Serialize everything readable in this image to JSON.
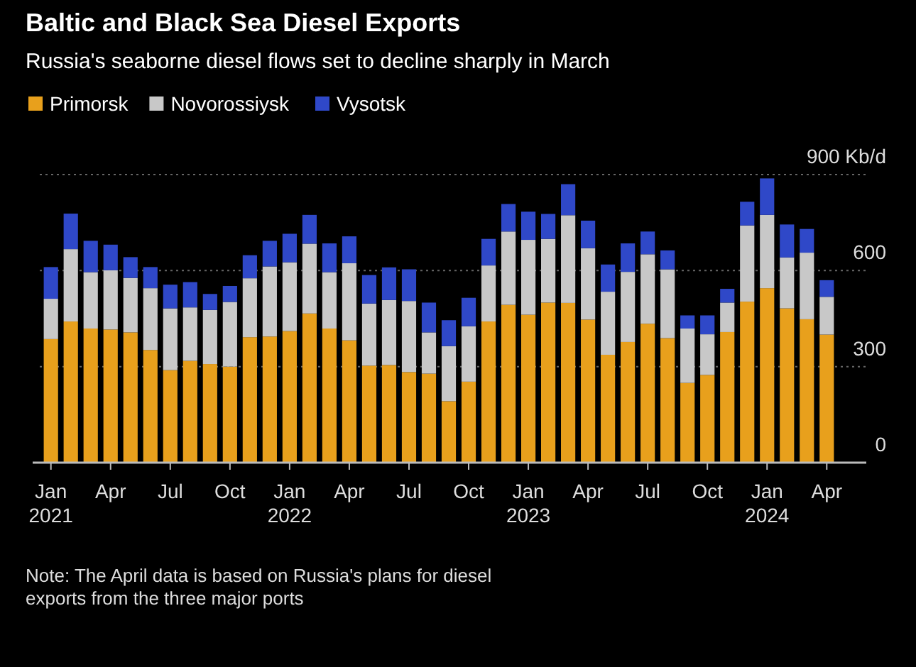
{
  "chart_data": {
    "type": "bar",
    "title": "Baltic and Black Sea Diesel Exports",
    "subtitle": "Russia's seaborne diesel flows set to decline sharply in March",
    "categories": [
      "Jan 2021",
      null,
      null,
      "Apr",
      null,
      null,
      "Jul",
      null,
      null,
      "Oct",
      null,
      null,
      "Jan 2022",
      null,
      null,
      "Apr",
      null,
      null,
      "Jul",
      null,
      null,
      "Oct",
      null,
      null,
      "Jan 2023",
      null,
      null,
      "Apr",
      null,
      null,
      "Jul",
      null,
      null,
      "Oct",
      null,
      null,
      "Jan 2024",
      null,
      null,
      "Apr"
    ],
    "stacked": true,
    "series": [
      {
        "name": "Primorsk",
        "color": "#e8a01c",
        "values": [
          386,
          441,
          419,
          416,
          407,
          352,
          289,
          318,
          308,
          300,
          392,
          394,
          411,
          466,
          419,
          382,
          303,
          305,
          283,
          278,
          192,
          253,
          441,
          493,
          462,
          500,
          499,
          447,
          337,
          377,
          434,
          389,
          249,
          274,
          408,
          503,
          545,
          482,
          448,
          400
        ]
      },
      {
        "name": "Novorossiysk",
        "color": "#c8c8c8",
        "values": [
          126,
          226,
          176,
          185,
          170,
          193,
          193,
          167,
          169,
          202,
          184,
          219,
          215,
          218,
          176,
          241,
          194,
          203,
          222,
          129,
          172,
          173,
          175,
          229,
          234,
          199,
          274,
          223,
          197,
          219,
          217,
          215,
          170,
          127,
          92,
          238,
          229,
          159,
          208,
          118
        ]
      },
      {
        "name": "Vysotsk",
        "color": "#2f48c8",
        "values": [
          99,
          111,
          98,
          80,
          65,
          66,
          74,
          79,
          50,
          50,
          72,
          80,
          89,
          90,
          90,
          84,
          89,
          102,
          99,
          93,
          81,
          89,
          83,
          86,
          88,
          78,
          97,
          86,
          85,
          89,
          71,
          59,
          41,
          59,
          43,
          74,
          114,
          103,
          74,
          52
        ]
      }
    ],
    "ylim": [
      0,
      900
    ],
    "yticks": [
      0,
      300,
      600,
      {
        "value": 900,
        "label": "900 Kb/d"
      }
    ],
    "grid": "y",
    "legend": "top left",
    "annotations": [
      "Note: The April data is based on Russia's plans for diesel exports from the three major ports"
    ]
  }
}
